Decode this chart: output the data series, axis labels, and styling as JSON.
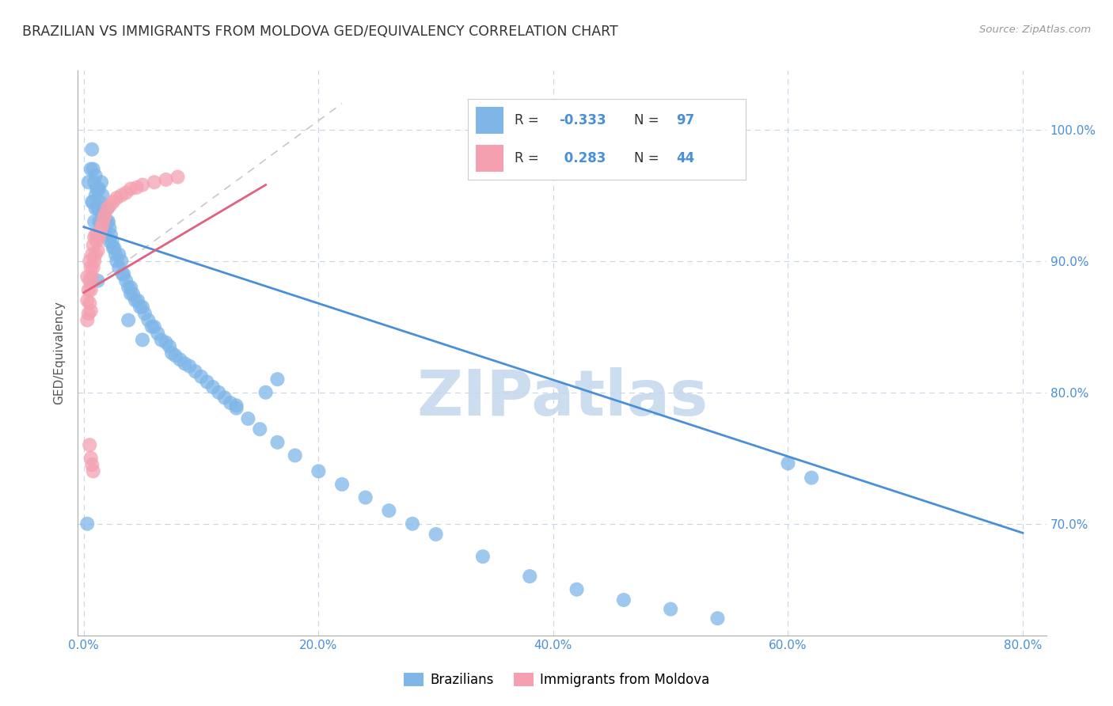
{
  "title": "BRAZILIAN VS IMMIGRANTS FROM MOLDOVA GED/EQUIVALENCY CORRELATION CHART",
  "source": "Source: ZipAtlas.com",
  "ylabel_label": "GED/Equivalency",
  "xlim": [
    -0.005,
    0.82
  ],
  "ylim": [
    0.615,
    1.045
  ],
  "ytick_positions": [
    0.7,
    0.8,
    0.9,
    1.0
  ],
  "ytick_labels": [
    "70.0%",
    "80.0%",
    "90.0%",
    "100.0%"
  ],
  "xtick_positions": [
    0.0,
    0.2,
    0.4,
    0.6,
    0.8
  ],
  "xtick_labels": [
    "0.0%",
    "20.0%",
    "40.0%",
    "60.0%",
    "80.0%"
  ],
  "watermark": "ZIPatlas",
  "blue_color": "#7eb6e8",
  "pink_color": "#f4a0b0",
  "blue_trend_color": "#4a90d9",
  "pink_trend_color": "#e06080",
  "ref_line_color": "#c8c8c8",
  "grid_color": "#c8d4e8",
  "title_color": "#333333",
  "axis_tick_color": "#4a90d9",
  "watermark_color": "#ccddf0",
  "background_color": "#ffffff",
  "blue_trend_x": [
    0.0,
    0.8
  ],
  "blue_trend_y": [
    0.926,
    0.693
  ],
  "pink_trend_x": [
    0.0,
    0.155
  ],
  "pink_trend_y": [
    0.876,
    0.958
  ],
  "ref_line_x": [
    0.0,
    0.22
  ],
  "ref_line_y": [
    0.876,
    1.02
  ],
  "blue_x": [
    0.003,
    0.004,
    0.006,
    0.007,
    0.007,
    0.008,
    0.008,
    0.009,
    0.009,
    0.01,
    0.01,
    0.01,
    0.011,
    0.012,
    0.012,
    0.013,
    0.013,
    0.013,
    0.014,
    0.015,
    0.015,
    0.016,
    0.016,
    0.017,
    0.018,
    0.018,
    0.019,
    0.02,
    0.02,
    0.021,
    0.022,
    0.022,
    0.023,
    0.024,
    0.025,
    0.026,
    0.027,
    0.028,
    0.03,
    0.03,
    0.032,
    0.033,
    0.034,
    0.036,
    0.038,
    0.04,
    0.04,
    0.042,
    0.044,
    0.046,
    0.048,
    0.05,
    0.052,
    0.055,
    0.058,
    0.06,
    0.063,
    0.066,
    0.07,
    0.073,
    0.075,
    0.078,
    0.082,
    0.086,
    0.09,
    0.095,
    0.1,
    0.105,
    0.11,
    0.115,
    0.12,
    0.125,
    0.13,
    0.14,
    0.15,
    0.165,
    0.18,
    0.2,
    0.22,
    0.24,
    0.26,
    0.28,
    0.3,
    0.34,
    0.38,
    0.42,
    0.46,
    0.5,
    0.54,
    0.6,
    0.62,
    0.155,
    0.165,
    0.012,
    0.13,
    0.038,
    0.05
  ],
  "blue_y": [
    0.7,
    0.96,
    0.97,
    0.985,
    0.945,
    0.97,
    0.945,
    0.96,
    0.93,
    0.965,
    0.95,
    0.94,
    0.955,
    0.955,
    0.94,
    0.955,
    0.94,
    0.93,
    0.945,
    0.96,
    0.93,
    0.95,
    0.935,
    0.94,
    0.93,
    0.92,
    0.925,
    0.94,
    0.93,
    0.93,
    0.925,
    0.915,
    0.92,
    0.915,
    0.91,
    0.91,
    0.905,
    0.9,
    0.905,
    0.895,
    0.9,
    0.89,
    0.89,
    0.885,
    0.88,
    0.88,
    0.875,
    0.875,
    0.87,
    0.87,
    0.865,
    0.865,
    0.86,
    0.855,
    0.85,
    0.85,
    0.845,
    0.84,
    0.838,
    0.835,
    0.83,
    0.828,
    0.825,
    0.822,
    0.82,
    0.816,
    0.812,
    0.808,
    0.804,
    0.8,
    0.796,
    0.792,
    0.788,
    0.78,
    0.772,
    0.762,
    0.752,
    0.74,
    0.73,
    0.72,
    0.71,
    0.7,
    0.692,
    0.675,
    0.66,
    0.65,
    0.642,
    0.635,
    0.628,
    0.746,
    0.735,
    0.8,
    0.81,
    0.885,
    0.79,
    0.855,
    0.84
  ],
  "pink_x": [
    0.003,
    0.003,
    0.003,
    0.004,
    0.004,
    0.005,
    0.005,
    0.005,
    0.006,
    0.006,
    0.006,
    0.007,
    0.007,
    0.008,
    0.008,
    0.009,
    0.009,
    0.01,
    0.01,
    0.011,
    0.012,
    0.012,
    0.013,
    0.014,
    0.015,
    0.016,
    0.017,
    0.018,
    0.02,
    0.022,
    0.025,
    0.028,
    0.032,
    0.036,
    0.04,
    0.045,
    0.05,
    0.06,
    0.07,
    0.08,
    0.005,
    0.006,
    0.007,
    0.008
  ],
  "pink_y": [
    0.888,
    0.87,
    0.855,
    0.878,
    0.86,
    0.9,
    0.885,
    0.868,
    0.895,
    0.878,
    0.862,
    0.905,
    0.888,
    0.912,
    0.895,
    0.918,
    0.9,
    0.92,
    0.905,
    0.915,
    0.92,
    0.908,
    0.918,
    0.922,
    0.925,
    0.928,
    0.932,
    0.935,
    0.94,
    0.942,
    0.945,
    0.948,
    0.95,
    0.952,
    0.955,
    0.956,
    0.958,
    0.96,
    0.962,
    0.964,
    0.76,
    0.75,
    0.745,
    0.74
  ]
}
